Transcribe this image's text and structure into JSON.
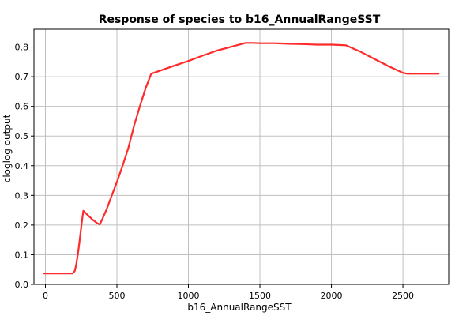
{
  "chart_data": {
    "type": "line",
    "title": "Response of species to b16_AnnualRangeSST",
    "xlabel": "b16_AnnualRangeSST",
    "ylabel": "cloglog output",
    "xlim": [
      -80,
      2820
    ],
    "ylim": [
      0,
      0.86
    ],
    "xticks": [
      0,
      500,
      1000,
      1500,
      2000,
      2500
    ],
    "xtick_labels": [
      "0",
      "500",
      "1000",
      "1500",
      "2000",
      "2500"
    ],
    "yticks": [
      0,
      0.1,
      0.2,
      0.3,
      0.4,
      0.5,
      0.6,
      0.7,
      0.8
    ],
    "ytick_labels": [
      "0.0",
      "0.1",
      "0.2",
      "0.3",
      "0.4",
      "0.5",
      "0.6",
      "0.7",
      "0.8"
    ],
    "grid": true,
    "line_color": "#ff2a2a",
    "series": [
      {
        "x": [
          -10,
          190,
          205,
          215,
          225,
          235,
          245,
          255,
          265,
          275,
          300,
          330,
          360,
          380,
          400,
          430,
          460,
          500,
          540,
          580,
          620,
          660,
          700,
          740,
          800,
          900,
          1000,
          1100,
          1200,
          1300,
          1400,
          1450,
          1500,
          1600,
          1650,
          1700,
          1800,
          1850,
          1900,
          2000,
          2050,
          2100,
          2200,
          2300,
          2400,
          2500,
          2530,
          2600,
          2700,
          2750
        ],
        "y": [
          0.037,
          0.037,
          0.045,
          0.065,
          0.095,
          0.13,
          0.17,
          0.21,
          0.248,
          0.243,
          0.232,
          0.218,
          0.207,
          0.202,
          0.222,
          0.255,
          0.295,
          0.345,
          0.4,
          0.46,
          0.535,
          0.6,
          0.66,
          0.71,
          0.72,
          0.737,
          0.753,
          0.771,
          0.788,
          0.801,
          0.814,
          0.814,
          0.813,
          0.813,
          0.812,
          0.811,
          0.81,
          0.809,
          0.808,
          0.808,
          0.807,
          0.806,
          0.785,
          0.76,
          0.735,
          0.713,
          0.71,
          0.71,
          0.71,
          0.71
        ]
      }
    ]
  }
}
